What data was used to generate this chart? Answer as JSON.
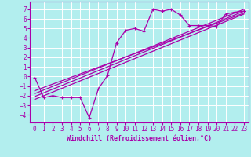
{
  "xlabel": "Windchill (Refroidissement éolien,°C)",
  "xlim": [
    -0.5,
    23.5
  ],
  "ylim": [
    -4.8,
    7.8
  ],
  "xticks": [
    0,
    1,
    2,
    3,
    4,
    5,
    6,
    7,
    8,
    9,
    10,
    11,
    12,
    13,
    14,
    15,
    16,
    17,
    18,
    19,
    20,
    21,
    22,
    23
  ],
  "yticks": [
    -4,
    -3,
    -2,
    -1,
    0,
    1,
    2,
    3,
    4,
    5,
    6,
    7
  ],
  "bg_color": "#b2eeee",
  "grid_color": "#d0f0f0",
  "line_color": "#aa00aa",
  "data_x": [
    0,
    1,
    2,
    3,
    4,
    5,
    6,
    7,
    8,
    9,
    10,
    11,
    12,
    13,
    14,
    15,
    16,
    17,
    18,
    19,
    20,
    21,
    22,
    23
  ],
  "data_y": [
    -0.1,
    -2.2,
    -2.0,
    -2.2,
    -2.2,
    -2.2,
    -4.3,
    -1.3,
    0.1,
    3.5,
    4.8,
    5.0,
    4.7,
    7.0,
    6.8,
    7.0,
    6.4,
    5.3,
    5.3,
    5.3,
    5.2,
    6.5,
    6.7,
    6.8
  ],
  "reg_lines": [
    {
      "x0": 0,
      "y0": -2.4,
      "x1": 23,
      "y1": 6.5
    },
    {
      "x0": 0,
      "y0": -2.1,
      "x1": 23,
      "y1": 6.8
    },
    {
      "x0": 0,
      "y0": -1.8,
      "x1": 23,
      "y1": 7.0
    },
    {
      "x0": 0,
      "y0": -1.5,
      "x1": 23,
      "y1": 6.6
    }
  ],
  "marker_size": 2.5,
  "line_width": 0.9,
  "xlabel_fontsize": 6,
  "tick_fontsize": 5.5
}
